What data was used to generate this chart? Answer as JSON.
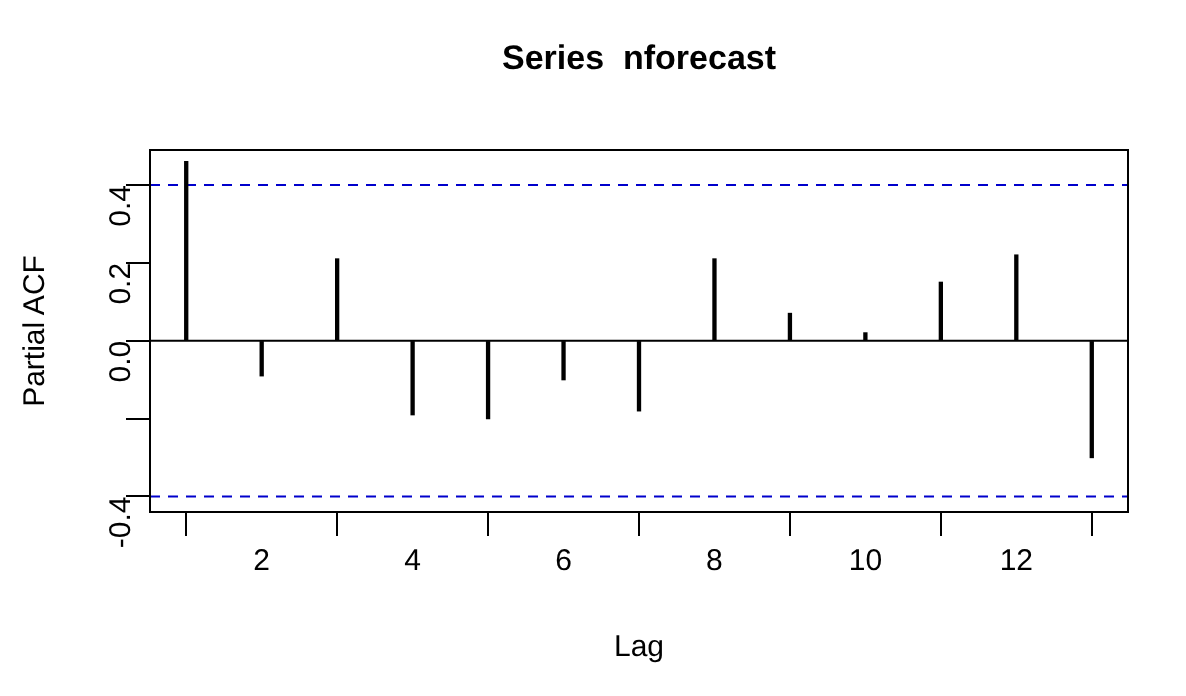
{
  "chart_data": {
    "type": "bar",
    "title": "Series  nforecast",
    "xlabel": "Lag",
    "ylabel": "Partial ACF",
    "x": [
      1,
      2,
      3,
      4,
      5,
      6,
      7,
      8,
      9,
      10,
      11,
      12,
      13
    ],
    "values": [
      0.46,
      -0.09,
      0.21,
      -0.19,
      -0.2,
      -0.1,
      -0.18,
      0.21,
      0.07,
      0.02,
      0.15,
      0.22,
      -0.3
    ],
    "color": "#000000",
    "xlim": [
      0.52,
      13.48
    ],
    "xticks": [
      2,
      4,
      6,
      8,
      10,
      12
    ],
    "ylim": [
      -0.44,
      0.49
    ],
    "yticks": [
      -0.4,
      {
        "value": -0.2,
        "label": null
      },
      {
        "value": 0,
        "label": "0.0"
      },
      0.2,
      0.4
    ],
    "ref_lines": [
      {
        "axis": "y",
        "value": 0,
        "color": "#000000",
        "line_style": "solid"
      },
      {
        "axis": "y",
        "value": 0.4,
        "color": "#0000cc",
        "line_style": "dashed"
      },
      {
        "axis": "y",
        "value": -0.4,
        "color": "#0000cc",
        "line_style": "dashed"
      }
    ],
    "grid": false,
    "legend": false
  }
}
